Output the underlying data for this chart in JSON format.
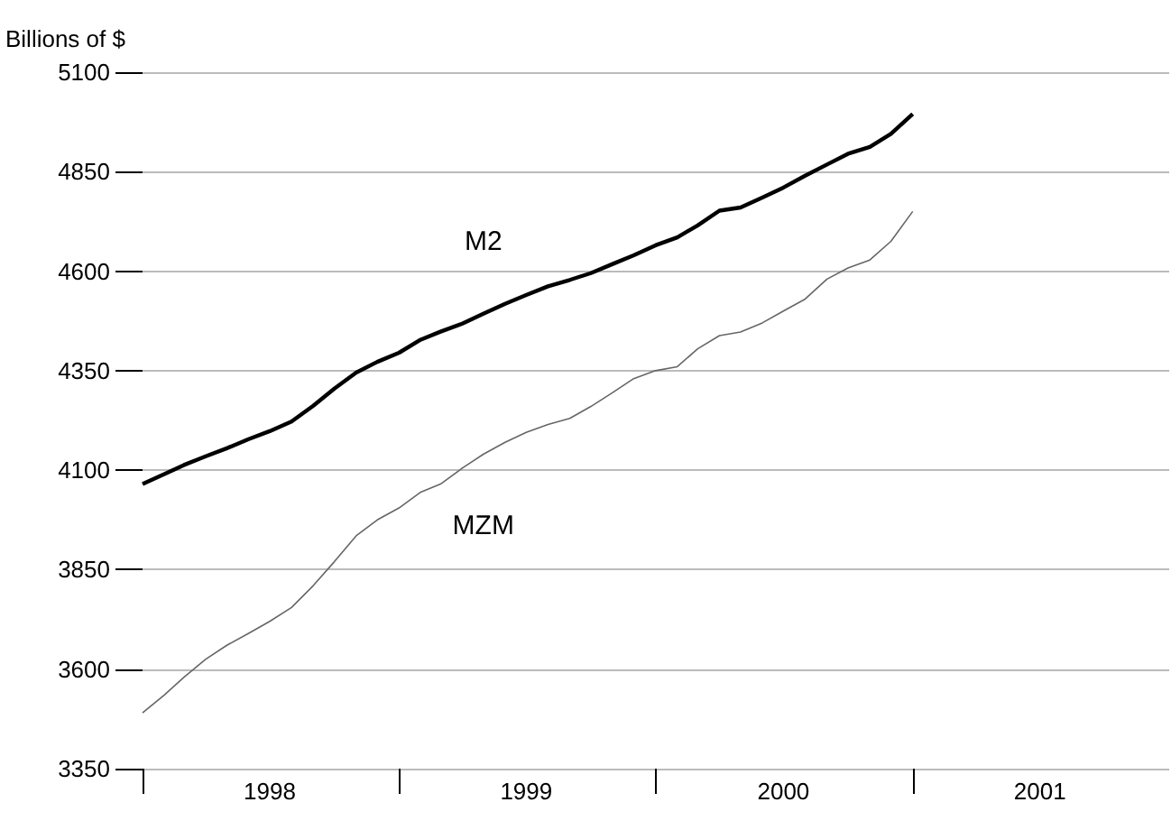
{
  "chart_data": {
    "type": "line",
    "ylabel": "Billions of $",
    "x": [
      "1998-01",
      "1998-02",
      "1998-03",
      "1998-04",
      "1998-05",
      "1998-06",
      "1998-07",
      "1998-08",
      "1998-09",
      "1998-10",
      "1998-11",
      "1998-12",
      "1999-01",
      "1999-02",
      "1999-03",
      "1999-04",
      "1999-05",
      "1999-06",
      "1999-07",
      "1999-08",
      "1999-09",
      "1999-10",
      "1999-11",
      "1999-12",
      "2000-01",
      "2000-02",
      "2000-03",
      "2000-04",
      "2000-05",
      "2000-06",
      "2000-07",
      "2000-08",
      "2000-09",
      "2000-10",
      "2000-11",
      "2000-12",
      "2001-01"
    ],
    "series": [
      {
        "name": "M2",
        "color": "#000000",
        "values": [
          4065,
          4090,
          4113,
          4135,
          4155,
          4178,
          4198,
          4222,
          4262,
          4305,
          4345,
          4372,
          4395,
          4428,
          4448,
          4468,
          4493,
          4518,
          4540,
          4562,
          4578,
          4595,
          4618,
          4640,
          4665,
          4685,
          4715,
          4752,
          4760,
          4785,
          4810,
          4840,
          4868,
          4895,
          4912,
          4945,
          4995
        ]
      },
      {
        "name": "MZM",
        "color": "#666666",
        "values": [
          3490,
          3535,
          3580,
          3625,
          3660,
          3690,
          3720,
          3755,
          3810,
          3870,
          3935,
          3975,
          4005,
          4045,
          4065,
          4105,
          4140,
          4170,
          4195,
          4215,
          4230,
          4260,
          4295,
          4330,
          4350,
          4360,
          4405,
          4438,
          4447,
          4470,
          4500,
          4530,
          4580,
          4608,
          4628,
          4675,
          4750
        ]
      }
    ],
    "ylim": [
      3350,
      5100
    ],
    "yticks": [
      3350,
      3600,
      3850,
      4100,
      4350,
      4600,
      4850,
      5100
    ],
    "xlim": [
      "1998-01",
      "2002-01"
    ],
    "xticks": [
      {
        "value": "1998-01",
        "label": null
      },
      {
        "value": "1998-07",
        "label": "1998"
      },
      {
        "value": "1999-01",
        "label": null
      },
      {
        "value": "1999-07",
        "label": "1999"
      },
      {
        "value": "2000-01",
        "label": null
      },
      {
        "value": "2000-07",
        "label": "2000"
      },
      {
        "value": "2001-01",
        "label": null
      },
      {
        "value": "2001-07",
        "label": "2001"
      }
    ],
    "grid": "y",
    "legend": false,
    "marker": "none",
    "line_style": "solid"
  }
}
